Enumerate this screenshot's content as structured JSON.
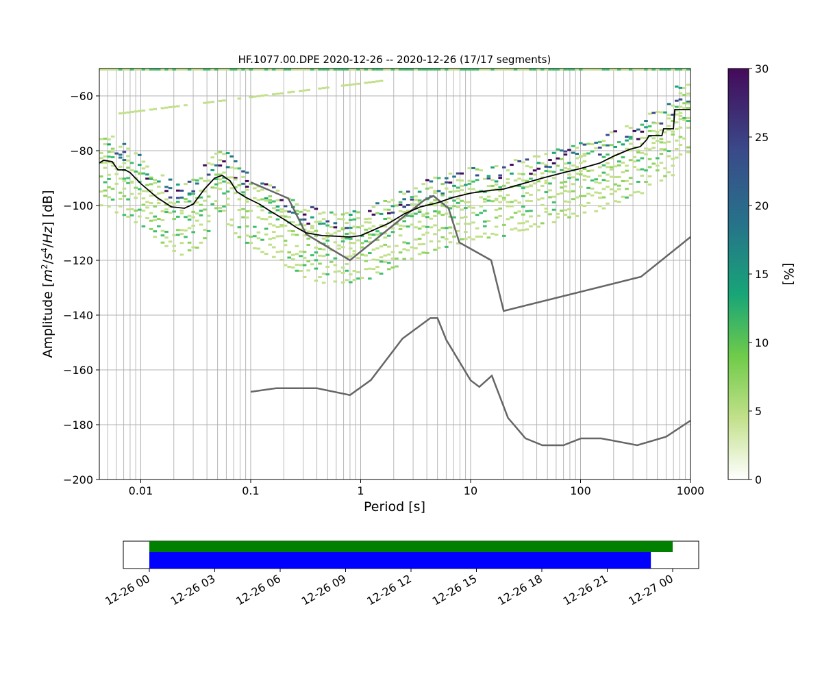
{
  "chart_data": [
    {
      "type": "heatmap",
      "title": "HF.1077.00.DPE   2020-12-26 -- 2020-12-26  (17/17 segments)",
      "xlabel": "Period [s]",
      "ylabel": "Amplitude [m²/s⁴/Hz] [dB]",
      "x_scale": "log",
      "xlim": [
        0.0042,
        1000
      ],
      "ylim": [
        -200,
        -50
      ],
      "grid": true,
      "x_ticks": [
        0.01,
        0.1,
        1,
        10,
        100,
        1000
      ],
      "x_tick_labels": [
        "0.01",
        "0.1",
        "1",
        "10",
        "100",
        "1000"
      ],
      "y_ticks": [
        -60,
        -80,
        -100,
        -120,
        -140,
        -160,
        -180,
        -200
      ],
      "y_tick_labels": [
        "−60",
        "−80",
        "−100",
        "−120",
        "−140",
        "−160",
        "−180",
        "−200"
      ],
      "colorbar": {
        "label": "[%]",
        "range": [
          0,
          30
        ],
        "ticks": [
          0,
          5,
          10,
          15,
          20,
          25,
          30
        ],
        "tick_labels": [
          "0",
          "5",
          "10",
          "15",
          "20",
          "25",
          "30"
        ],
        "colormap": "white-green-purple"
      },
      "series": [
        {
          "role": "mean",
          "color": "#000000",
          "points": [
            [
              0.0042,
              -84.5
            ],
            [
              0.0046,
              -83.5
            ],
            [
              0.0055,
              -84
            ],
            [
              0.0062,
              -87
            ],
            [
              0.0072,
              -87
            ],
            [
              0.008,
              -88
            ],
            [
              0.01,
              -92
            ],
            [
              0.014,
              -97
            ],
            [
              0.019,
              -100.5
            ],
            [
              0.025,
              -101
            ],
            [
              0.03,
              -99.5
            ],
            [
              0.038,
              -94
            ],
            [
              0.047,
              -90
            ],
            [
              0.055,
              -89
            ],
            [
              0.065,
              -91
            ],
            [
              0.075,
              -95
            ],
            [
              0.09,
              -97
            ],
            [
              0.12,
              -99.5
            ],
            [
              0.15,
              -102
            ],
            [
              0.2,
              -105
            ],
            [
              0.26,
              -108
            ],
            [
              0.32,
              -110
            ],
            [
              0.45,
              -111
            ],
            [
              0.6,
              -111.2
            ],
            [
              0.8,
              -111.5
            ],
            [
              1.0,
              -111
            ],
            [
              1.3,
              -109
            ],
            [
              1.8,
              -106.5
            ],
            [
              2.5,
              -103
            ],
            [
              3.5,
              -100.5
            ],
            [
              5,
              -99
            ],
            [
              7,
              -97
            ],
            [
              10,
              -95.5
            ],
            [
              15,
              -94.5
            ],
            [
              20,
              -94
            ],
            [
              30,
              -92
            ],
            [
              45,
              -90
            ],
            [
              70,
              -88
            ],
            [
              100,
              -86.5
            ],
            [
              150,
              -84.5
            ],
            [
              200,
              -82
            ],
            [
              280,
              -79.5
            ],
            [
              350,
              -78.5
            ],
            [
              400,
              -76
            ],
            [
              420,
              -74.5
            ],
            [
              550,
              -74.5
            ],
            [
              570,
              -72
            ],
            [
              700,
              -72
            ],
            [
              720,
              -65
            ],
            [
              1000,
              -65
            ]
          ]
        },
        {
          "role": "NHNM",
          "color": "#666666",
          "points": [
            [
              0.1,
              -91.5
            ],
            [
              0.22,
              -97.4
            ],
            [
              0.32,
              -110.5
            ],
            [
              0.8,
              -120
            ],
            [
              3.8,
              -98
            ],
            [
              4.6,
              -96.5
            ],
            [
              6.3,
              -101
            ],
            [
              7.9,
              -113.5
            ],
            [
              15.4,
              -120
            ],
            [
              20,
              -138.5
            ],
            [
              354.8,
              -126
            ],
            [
              1000,
              -111.5
            ]
          ]
        },
        {
          "role": "NLNM",
          "color": "#666666",
          "points": [
            [
              0.1,
              -168
            ],
            [
              0.17,
              -166.7
            ],
            [
              0.4,
              -166.7
            ],
            [
              0.8,
              -169.2
            ],
            [
              1.24,
              -163.7
            ],
            [
              2.4,
              -148.6
            ],
            [
              4.3,
              -141.1
            ],
            [
              5.0,
              -141.1
            ],
            [
              6.0,
              -149
            ],
            [
              10,
              -163.8
            ],
            [
              12,
              -166.2
            ],
            [
              15.6,
              -162.1
            ],
            [
              21.9,
              -177.5
            ],
            [
              31.6,
              -185
            ],
            [
              45,
              -187.5
            ],
            [
              70,
              -187.5
            ],
            [
              101,
              -185
            ],
            [
              154,
              -185
            ],
            [
              328,
              -187.5
            ],
            [
              600,
              -184.4
            ],
            [
              1000,
              -178.5
            ]
          ]
        }
      ]
    },
    {
      "type": "timeline",
      "x_tick_labels": [
        "12-26 00",
        "12-26 03",
        "12-26 06",
        "12-26 09",
        "12-26 12",
        "12-26 15",
        "12-26 18",
        "12-26 21",
        "12-27 00"
      ],
      "bars": [
        {
          "color": "#008000",
          "start_hour": 0,
          "end_hour": 24
        },
        {
          "color": "#0000ff",
          "start_hour": 0,
          "end_hour": 23
        }
      ]
    }
  ]
}
